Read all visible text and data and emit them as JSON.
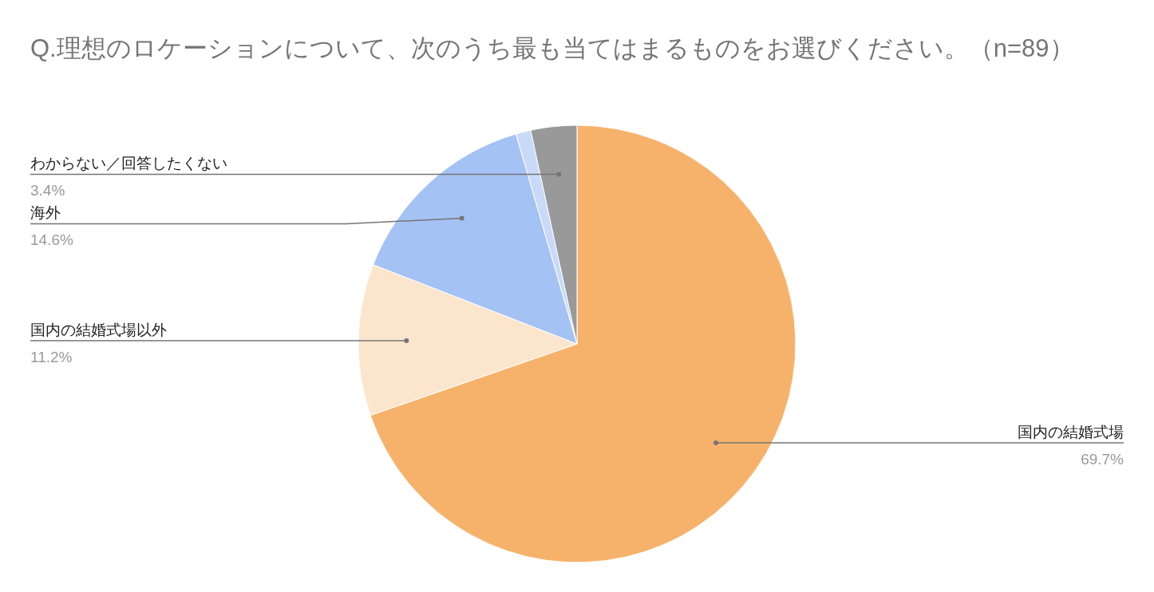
{
  "chart_data": {
    "type": "pie",
    "title": "Q.理想のロケーションについて、次のうち最も当てはまるものをお選びください。（n=89）",
    "categories": [
      "国内の結婚式場",
      "国内の結婚式場以外",
      "海外",
      null,
      "わからない／回答したくない"
    ],
    "values": [
      69.7,
      11.2,
      14.6,
      1.1,
      3.4
    ],
    "value_labels": [
      "69.7%",
      "11.2%",
      "14.6%",
      null,
      "3.4%"
    ],
    "colors": [
      "#f6b26b",
      "#fce5cd",
      "#a4c2f4",
      "#c9daf8",
      "#999999"
    ]
  }
}
